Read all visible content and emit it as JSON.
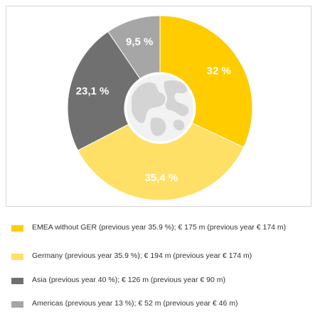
{
  "chart_data": {
    "type": "pie",
    "categories": [
      "EMEA without GER",
      "Germany",
      "Asia",
      "Americas"
    ],
    "values": [
      32,
      35.4,
      23.1,
      9.5
    ],
    "value_labels": [
      "32 %",
      "35,4 %",
      "23,1 %",
      "9,5 %"
    ],
    "colors": [
      "#FFCC00",
      "#FFE066",
      "#707070",
      "#A6A6A6"
    ],
    "legend_position": "bottom",
    "center_icon": "globe-icon",
    "legend": [
      "EMEA without GER (previous year 35.9 %); € 175 m (previous year € 174 m)",
      "Germany (previous year 35.9 %); € 194 m (previous year € 174 m)",
      "Asia (previous year 40 %); € 126 m (previous year € 90 m)",
      "Americas (previous year 13 %); € 52 m (previous year € 46 m)"
    ]
  }
}
